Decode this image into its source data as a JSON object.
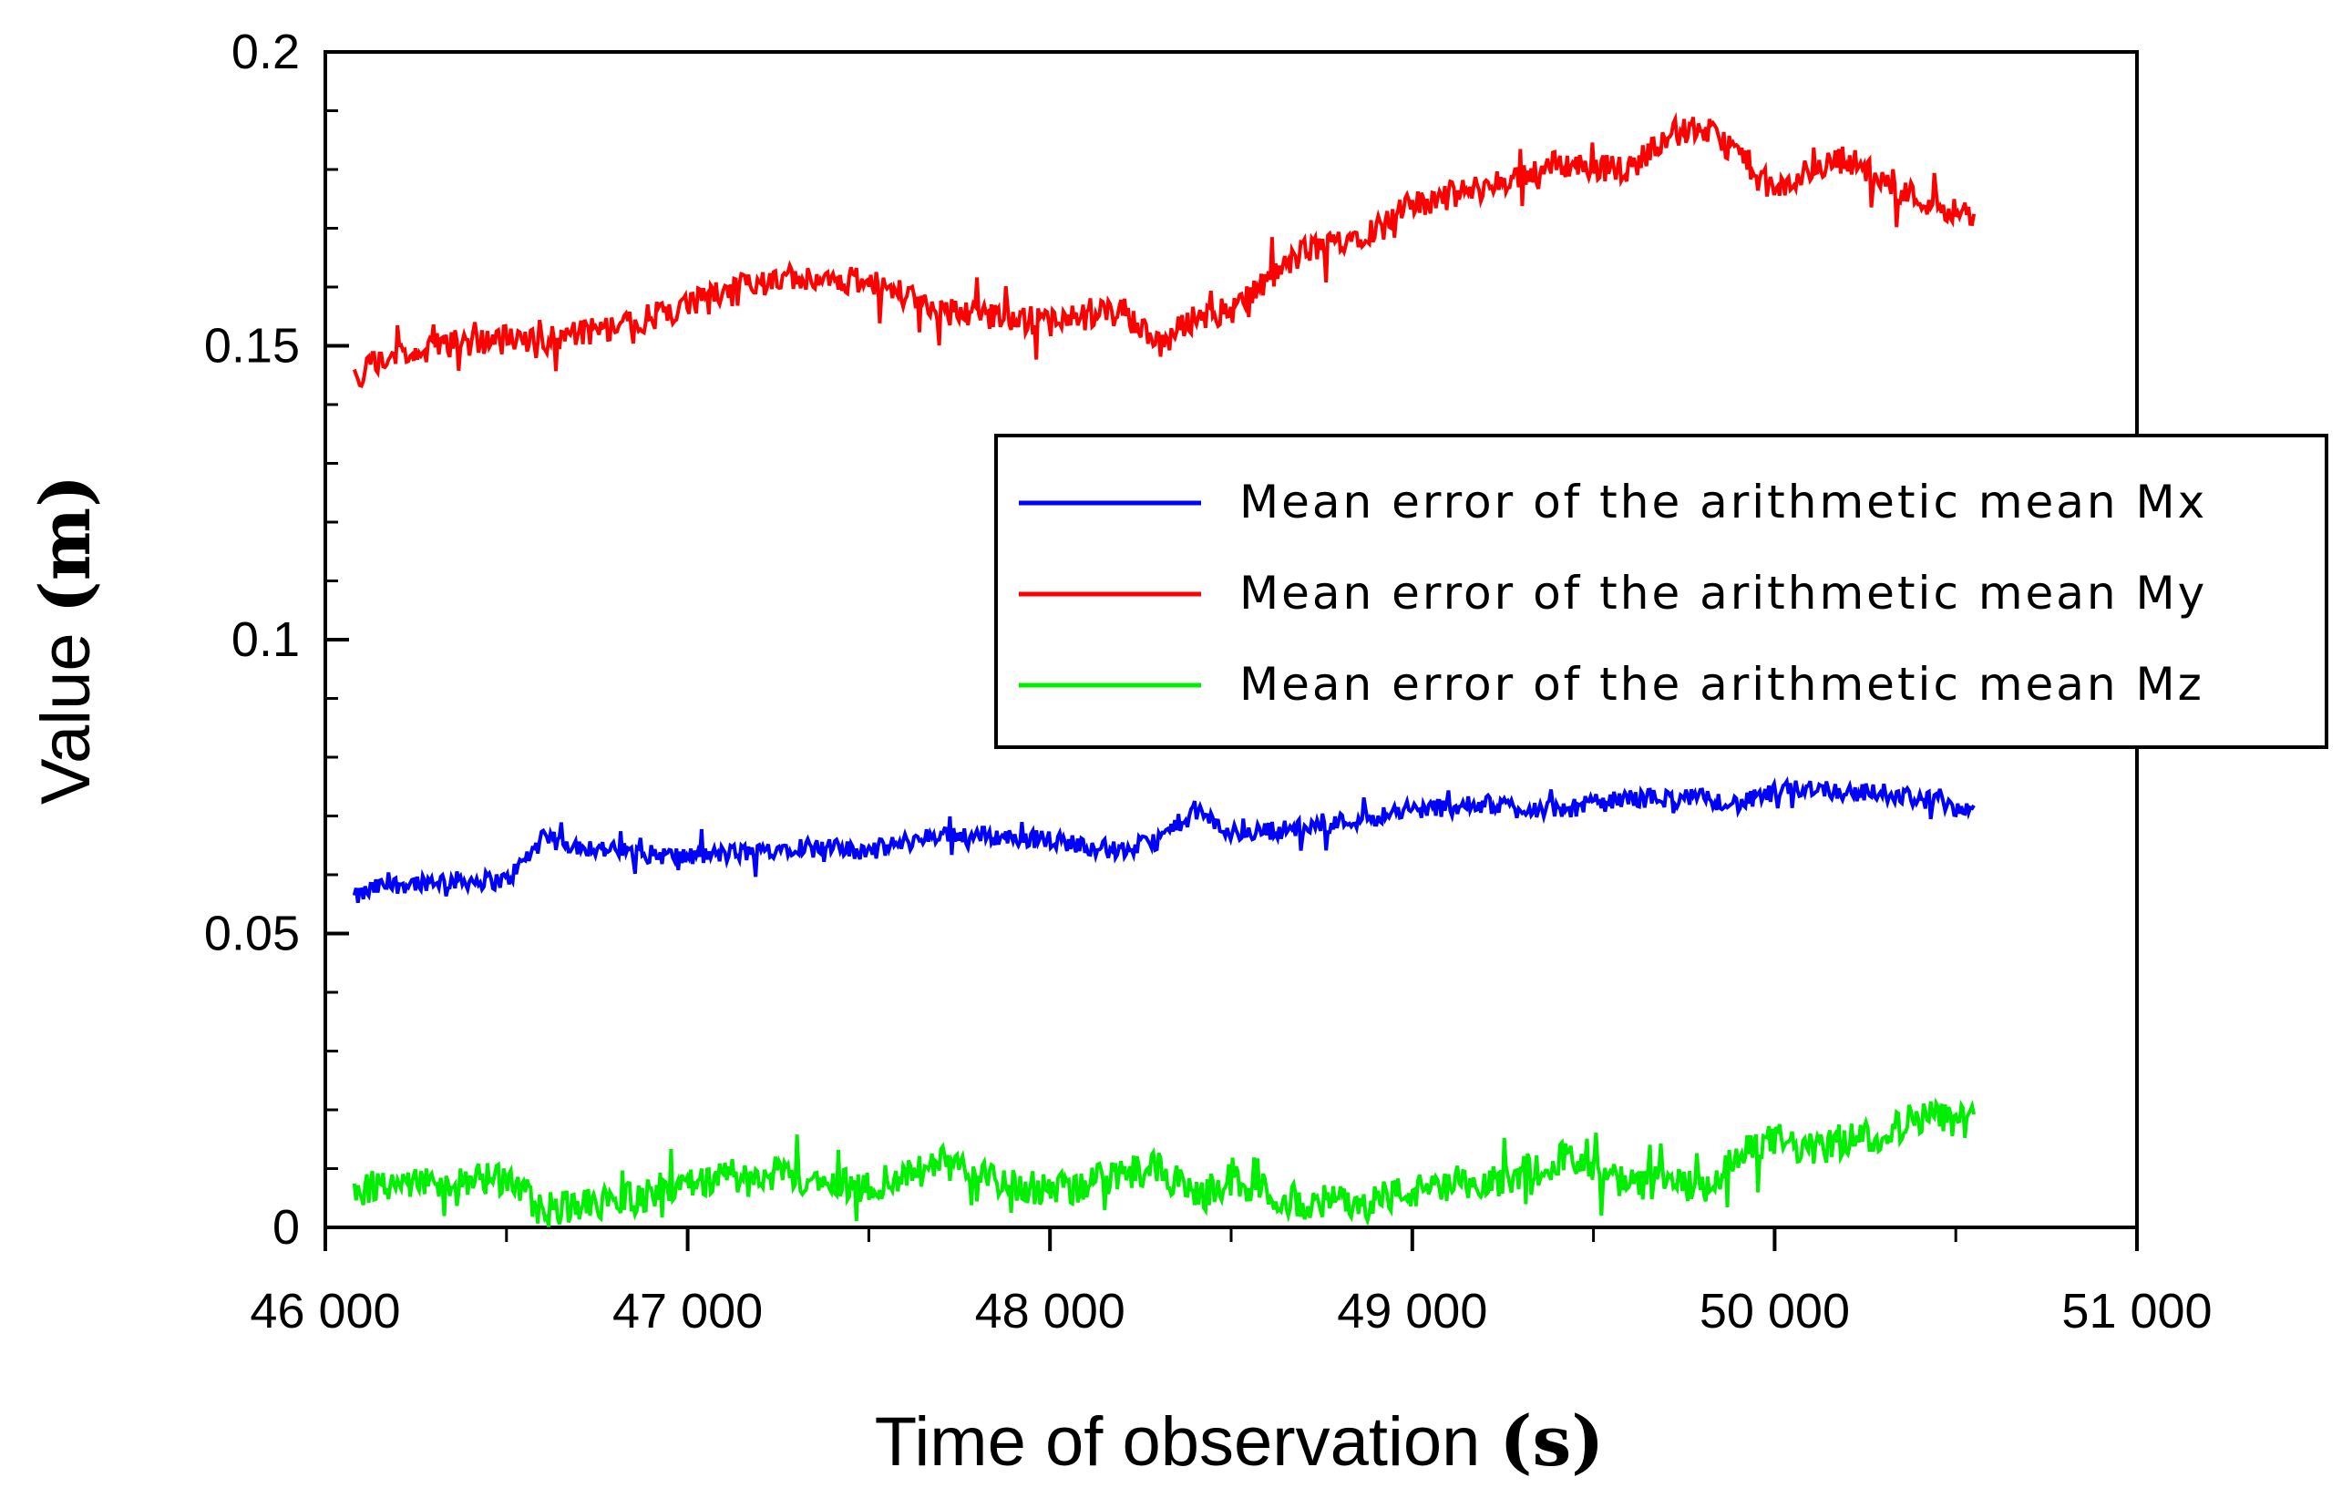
{
  "chart_data": {
    "type": "line",
    "title": "",
    "xlabel": "Time of observation",
    "xlabel_unit": "(s)",
    "ylabel": "Value",
    "ylabel_unit": "(m)",
    "xlim": [
      46000,
      51000
    ],
    "ylim": [
      0,
      0.2
    ],
    "x_ticks": [
      46000,
      47000,
      48000,
      49000,
      50000,
      51000
    ],
    "x_tick_labels": [
      "46 000",
      "47 000",
      "48 000",
      "49 000",
      "50 000",
      "51 000"
    ],
    "y_ticks": [
      0,
      0.05,
      0.1,
      0.15,
      0.2
    ],
    "y_tick_labels": [
      "0",
      "0.05",
      "0.1",
      "0.15",
      "0.2"
    ],
    "grid": false,
    "legend_position": "center-right",
    "x": [
      46080,
      46150,
      46300,
      46500,
      46600,
      46800,
      47000,
      47200,
      47300,
      47500,
      47700,
      48000,
      48200,
      48300,
      48400,
      48500,
      48700,
      48900,
      49000,
      49200,
      49400,
      49600,
      49700,
      49800,
      49900,
      50000,
      50100,
      50200,
      50300,
      50400,
      50550
    ],
    "series": [
      {
        "name": "Mean error of the arithmetic mean Mx",
        "color": "#0000ff",
        "values": [
          0.056,
          0.058,
          0.059,
          0.059,
          0.066,
          0.064,
          0.063,
          0.064,
          0.065,
          0.064,
          0.067,
          0.066,
          0.064,
          0.066,
          0.071,
          0.067,
          0.068,
          0.07,
          0.071,
          0.072,
          0.071,
          0.073,
          0.073,
          0.073,
          0.072,
          0.074,
          0.075,
          0.074,
          0.074,
          0.073,
          0.071
        ]
      },
      {
        "name": "Mean error of the arithmetic mean My",
        "color": "#ff0000",
        "values": [
          0.145,
          0.147,
          0.15,
          0.151,
          0.151,
          0.153,
          0.157,
          0.161,
          0.162,
          0.161,
          0.156,
          0.154,
          0.156,
          0.15,
          0.155,
          0.156,
          0.166,
          0.17,
          0.174,
          0.177,
          0.181,
          0.18,
          0.186,
          0.187,
          0.183,
          0.176,
          0.18,
          0.182,
          0.178,
          0.175,
          0.172
        ]
      },
      {
        "name": "Mean error of the arithmetic mean Mz",
        "color": "#00ee00",
        "values": [
          0.006,
          0.007,
          0.008,
          0.008,
          0.003,
          0.004,
          0.008,
          0.009,
          0.008,
          0.007,
          0.011,
          0.006,
          0.009,
          0.01,
          0.005,
          0.008,
          0.004,
          0.005,
          0.006,
          0.007,
          0.012,
          0.007,
          0.008,
          0.006,
          0.012,
          0.015,
          0.013,
          0.015,
          0.016,
          0.019,
          0.018
        ]
      }
    ]
  }
}
